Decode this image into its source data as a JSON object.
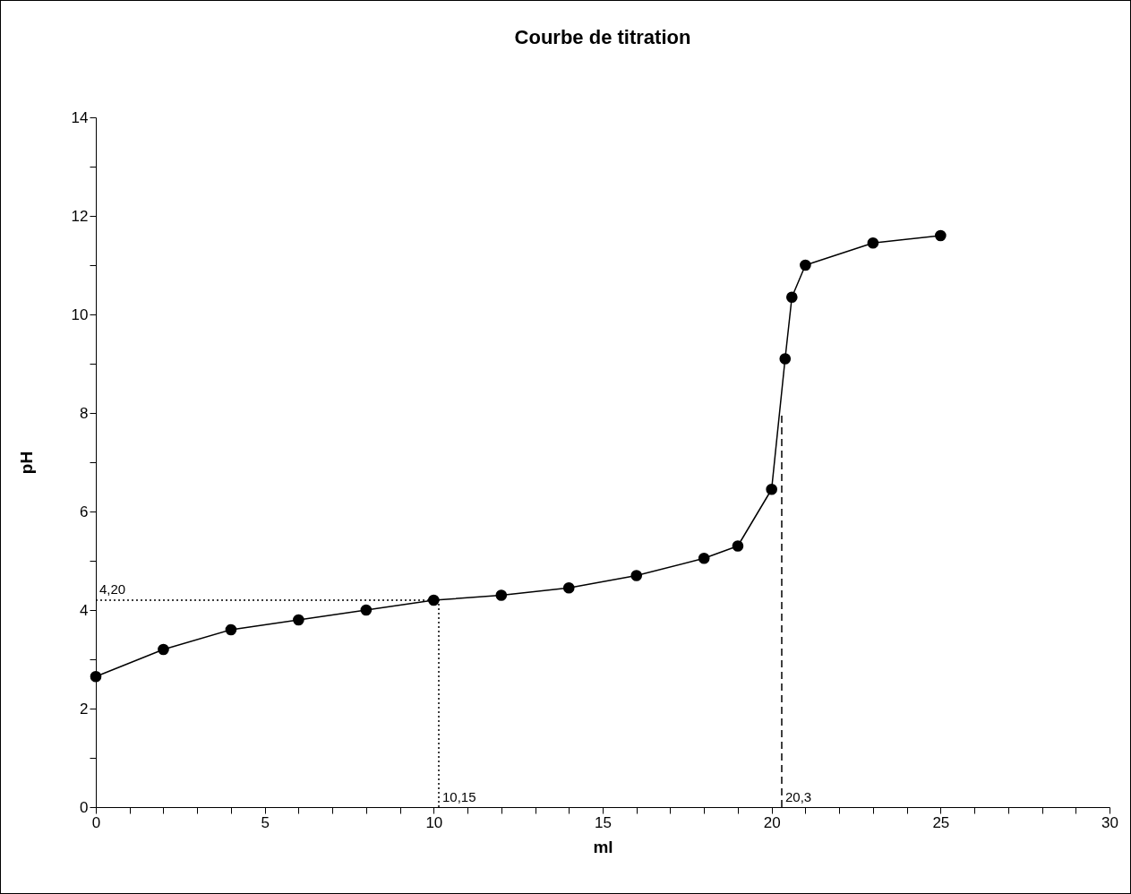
{
  "chart_data": {
    "type": "line",
    "title": "Courbe de titration",
    "xlabel": "ml",
    "ylabel": "pH",
    "marker": "circle",
    "line_style": "solid",
    "grid": false,
    "xlim": [
      0,
      30
    ],
    "ylim": [
      0,
      14
    ],
    "xticks": [
      0,
      {
        "value": 1,
        "label": null
      },
      {
        "value": 2,
        "label": null
      },
      {
        "value": 3,
        "label": null
      },
      {
        "value": 4,
        "label": null
      },
      5,
      {
        "value": 6,
        "label": null
      },
      {
        "value": 7,
        "label": null
      },
      {
        "value": 8,
        "label": null
      },
      {
        "value": 9,
        "label": null
      },
      10,
      {
        "value": 11,
        "label": null
      },
      {
        "value": 12,
        "label": null
      },
      {
        "value": 13,
        "label": null
      },
      {
        "value": 14,
        "label": null
      },
      15,
      {
        "value": 16,
        "label": null
      },
      {
        "value": 17,
        "label": null
      },
      {
        "value": 18,
        "label": null
      },
      {
        "value": 19,
        "label": null
      },
      20,
      {
        "value": 21,
        "label": null
      },
      {
        "value": 22,
        "label": null
      },
      {
        "value": 23,
        "label": null
      },
      {
        "value": 24,
        "label": null
      },
      25,
      {
        "value": 26,
        "label": null
      },
      {
        "value": 27,
        "label": null
      },
      {
        "value": 28,
        "label": null
      },
      {
        "value": 29,
        "label": null
      },
      30
    ],
    "yticks": [
      0,
      {
        "value": 1,
        "label": null
      },
      2,
      {
        "value": 3,
        "label": null
      },
      4,
      {
        "value": 5,
        "label": null
      },
      6,
      {
        "value": 7,
        "label": null
      },
      8,
      {
        "value": 9,
        "label": null
      },
      10,
      {
        "value": 11,
        "label": null
      },
      12,
      {
        "value": 13,
        "label": null
      },
      14
    ],
    "series": [
      {
        "color": "#000000",
        "x": [
          0,
          2,
          4,
          6,
          8,
          10,
          12,
          14,
          16,
          18,
          19,
          20,
          20.4,
          20.6,
          21,
          23,
          25
        ],
        "values": [
          2.65,
          3.2,
          3.6,
          3.8,
          4.0,
          4.2,
          4.3,
          4.45,
          4.7,
          5.05,
          5.3,
          6.45,
          9.1,
          10.35,
          11.0,
          11.45,
          11.6
        ]
      },
      {
        "type": "line",
        "color": "#000000",
        "marker": "none",
        "line_style": "dotted",
        "x": [
          0,
          10.15
        ],
        "values": [
          4.2,
          4.2
        ]
      },
      {
        "type": "line",
        "color": "#000000",
        "marker": "none",
        "line_style": "dotted",
        "x": [
          10.15,
          10.15
        ],
        "values": [
          0,
          4.2
        ]
      },
      {
        "type": "line",
        "color": "#000000",
        "marker": "none",
        "line_style": "dashed",
        "x": [
          20.3,
          20.3
        ],
        "values": [
          0,
          8
        ]
      }
    ],
    "annotations": [
      {
        "text": "4,20",
        "x": 0,
        "y": 4.2
      },
      {
        "text": "10,15",
        "x": 10.15,
        "y": 0
      },
      {
        "text": "20,3",
        "x": 20.3,
        "y": 0
      }
    ]
  }
}
